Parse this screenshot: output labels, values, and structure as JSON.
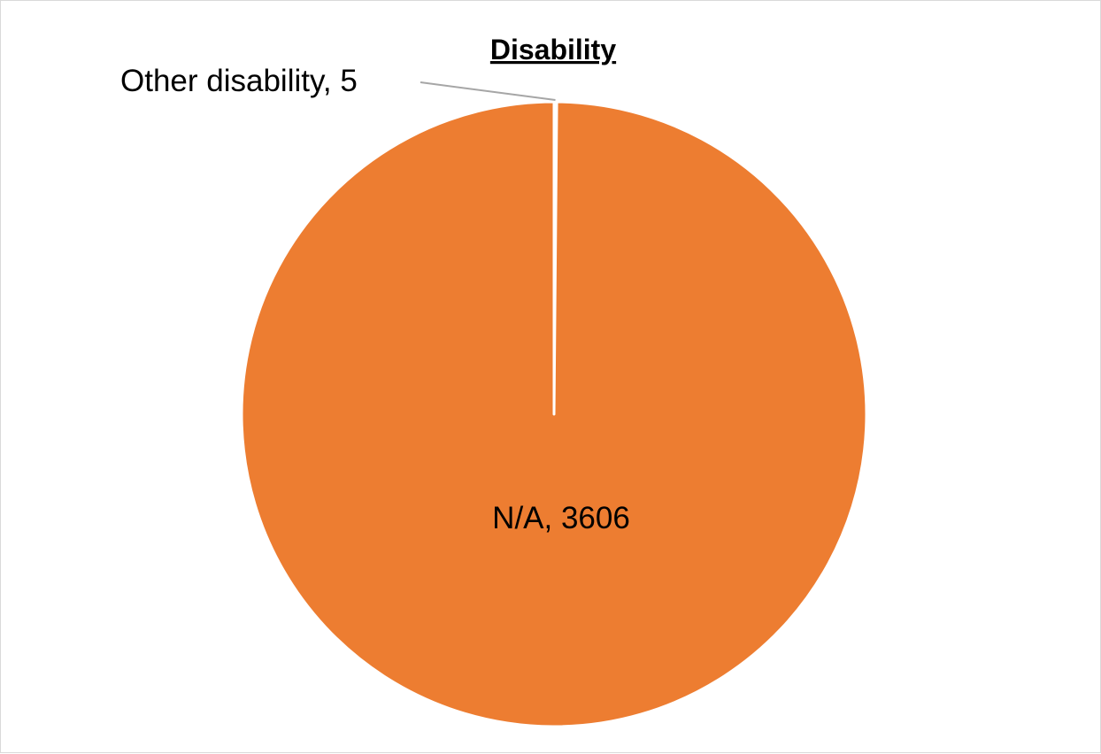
{
  "chart_data": {
    "type": "pie",
    "title": "Disability",
    "slices": [
      {
        "label": "Other disability",
        "value": 5,
        "data_label": "Other disability, 5",
        "color": "#4472C4"
      },
      {
        "label": "N/A",
        "value": 3606,
        "data_label": "N/A, 3606",
        "color": "#ED7D31"
      }
    ],
    "slice_border_color": "#FFFFFF",
    "leader_line_color": "#A6A6A6",
    "start_angle_deg": 0,
    "direction": "clockwise",
    "legend": "none"
  }
}
